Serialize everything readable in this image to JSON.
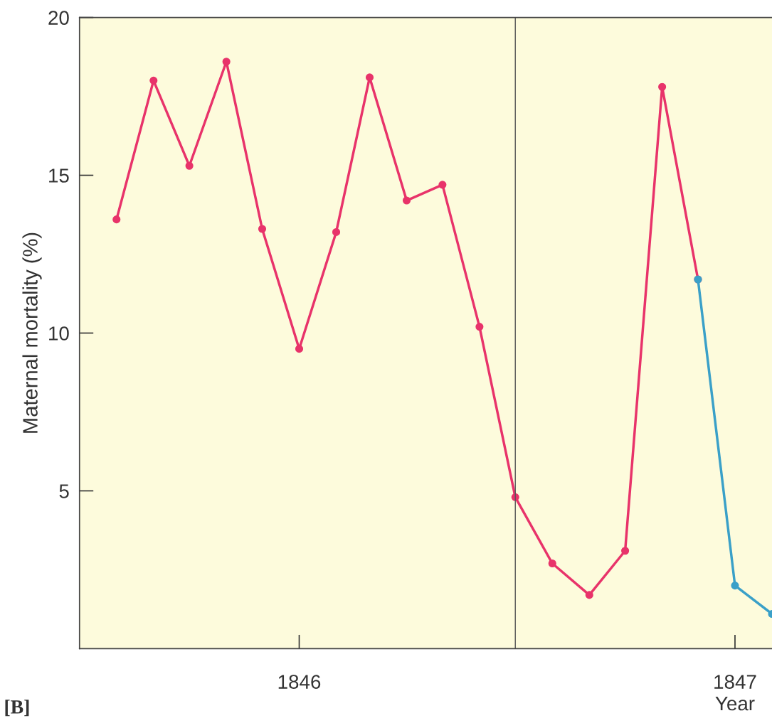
{
  "chart_data": {
    "type": "line",
    "xlabel": "Year",
    "ylabel": "Maternal mortality (%)",
    "annotations": [
      "[B]"
    ],
    "series": [
      {
        "color": "#e8336a",
        "x": [
          "1845-08",
          "1845-09",
          "1845-10",
          "1845-11",
          "1845-12",
          "1846-01",
          "1846-02",
          "1846-03",
          "1846-04",
          "1846-05",
          "1846-06",
          "1846-07",
          "1846-08",
          "1846-09",
          "1846-10",
          "1846-11",
          "1846-12"
        ],
        "values": [
          13.6,
          18.0,
          15.3,
          18.6,
          13.3,
          9.5,
          13.2,
          18.1,
          14.2,
          14.7,
          10.2,
          4.8,
          2.7,
          1.7,
          3.1,
          17.8,
          11.7
        ]
      },
      {
        "color": "#3aa0c8",
        "x": [
          "1846-12",
          "1847-01",
          "1847-02"
        ],
        "values": [
          11.7,
          2.0,
          1.1
        ]
      }
    ],
    "marker": "circle",
    "line_style": "solid",
    "grid": false,
    "legend": false,
    "xlim": [
      "1845-07-01",
      "1847-02-01"
    ],
    "xticks": [
      {
        "value": "1846-01",
        "label": "1846"
      },
      {
        "value": "1847-01",
        "label": "1847"
      }
    ],
    "ylim": [
      0,
      20
    ],
    "yticks": [
      5,
      10,
      15,
      20
    ],
    "ref_lines": [
      {
        "axis": "x",
        "value": "1846-07",
        "label": null,
        "color": "#555555"
      }
    ]
  }
}
